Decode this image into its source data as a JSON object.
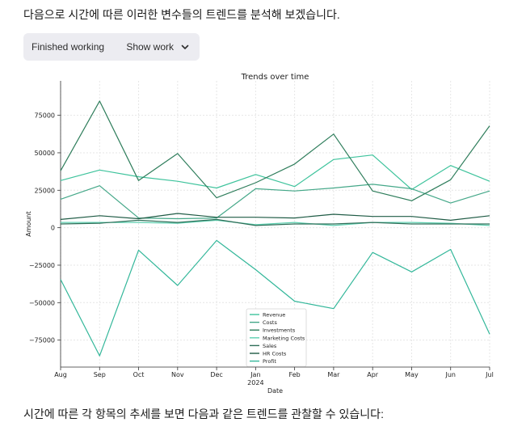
{
  "message": {
    "intro": "다음으로 시간에 따른 이러한 변수들의 트렌드를 분석해 보겠습니다.",
    "outro": "시간에 따른 각 항목의 추세를 보면 다음과 같은 트렌드를 관찰할 수 있습니다:"
  },
  "work_panel": {
    "title": "Finished working",
    "button_label": "Show work",
    "button_icon": "chevron-down-icon"
  },
  "colors": {
    "panel_bg": "#ececf1",
    "grid": "#e6e6e6"
  },
  "chart_data": {
    "type": "line",
    "title": "Trends over time",
    "xlabel": "Date",
    "ylabel": "Amount",
    "x": [
      "Aug",
      "Sep",
      "Oct",
      "Nov",
      "Dec",
      "Jan",
      "Feb",
      "Mar",
      "Apr",
      "May",
      "Jun",
      "Jul"
    ],
    "x_sublabel": {
      "index": 5,
      "text": "2024"
    },
    "ylim": [
      -93000,
      98000
    ],
    "yticks": [
      -75000,
      -50000,
      -25000,
      0,
      25000,
      50000,
      75000
    ],
    "ytick_labels": [
      "−75000",
      "−50000",
      "−25000",
      "0",
      "25000",
      "50000",
      "75000"
    ],
    "grid": true,
    "legend_position": "bottom-center",
    "series": [
      {
        "name": "Revenue",
        "color": "#3ec39c",
        "values": [
          31500,
          38500,
          34000,
          31000,
          26500,
          35500,
          27500,
          45500,
          48500,
          25500,
          41500,
          31000
        ]
      },
      {
        "name": "Costs",
        "color": "#45a889",
        "values": [
          19000,
          28000,
          6500,
          6000,
          6500,
          26000,
          24500,
          26500,
          29000,
          26000,
          16500,
          24500
        ]
      },
      {
        "name": "Investments",
        "color": "#2e7d5b",
        "values": [
          38000,
          84500,
          31500,
          49500,
          20000,
          30000,
          42500,
          62500,
          24500,
          18000,
          32000,
          68000
        ]
      },
      {
        "name": "Marketing Costs",
        "color": "#5ecfb0",
        "values": [
          3500,
          3500,
          3500,
          3000,
          5000,
          2000,
          3500,
          1500,
          3500,
          3500,
          3000,
          1500
        ]
      },
      {
        "name": "Sales",
        "color": "#2f6f59",
        "values": [
          2500,
          3000,
          5000,
          3500,
          5500,
          1500,
          2500,
          2500,
          3500,
          2500,
          2500,
          2500
        ]
      },
      {
        "name": "HR Costs",
        "color": "#1f5b45",
        "values": [
          5500,
          8000,
          6000,
          9500,
          7000,
          7000,
          6500,
          9000,
          7500,
          7500,
          5000,
          8000
        ]
      },
      {
        "name": "Profit",
        "color": "#33b79a",
        "values": [
          -34500,
          -85500,
          -15000,
          -38500,
          -8500,
          -28000,
          -49000,
          -54000,
          -16500,
          -29500,
          -14500,
          -71000
        ]
      }
    ]
  }
}
